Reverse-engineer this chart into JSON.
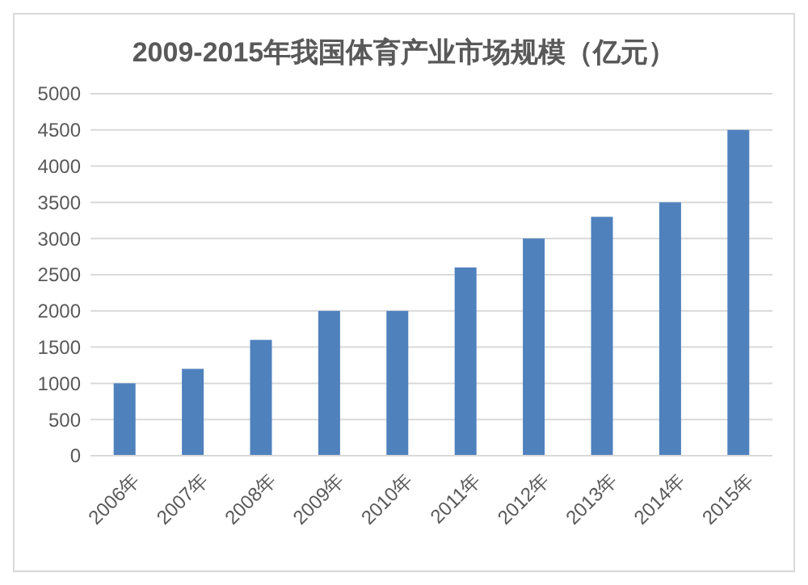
{
  "chart_data": {
    "type": "bar",
    "title": "2009-2015年我国体育产业市场规模（亿元）",
    "categories": [
      "2006年",
      "2007年",
      "2008年",
      "2009年",
      "2010年",
      "2011年",
      "2012年",
      "2013年",
      "2014年",
      "2015年"
    ],
    "values": [
      1000,
      1200,
      1600,
      2000,
      2000,
      2600,
      3000,
      3300,
      3500,
      4500
    ],
    "color": "#4f81bd",
    "ylim": [
      0,
      5000
    ],
    "yticks": [
      0,
      500,
      1000,
      1500,
      2000,
      2500,
      3000,
      3500,
      4000,
      4500,
      5000
    ],
    "grid": "y"
  }
}
